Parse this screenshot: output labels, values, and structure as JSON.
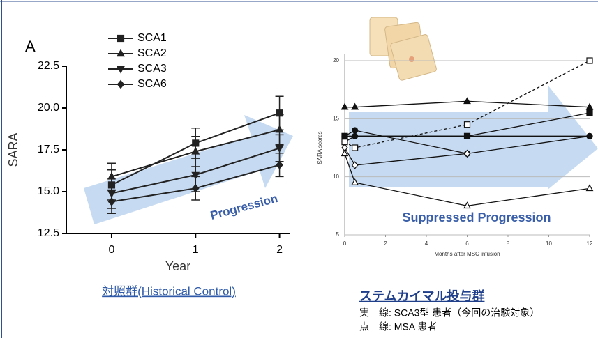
{
  "chart_data": [
    {
      "type": "line",
      "panel_label": "A",
      "xlabel": "Year",
      "ylabel": "SARA",
      "x": [
        0,
        1,
        2
      ],
      "xlim": [
        -0.54,
        2.12
      ],
      "xticks": [
        0,
        1,
        2
      ],
      "ylim": [
        12.5,
        22.5
      ],
      "yticks": [
        12.5,
        {
          "value": 15,
          "label": "15.0"
        },
        17.5,
        {
          "value": 20,
          "label": "20.0"
        },
        22.5
      ],
      "series": [
        {
          "name": "SCA1",
          "color": "#222222",
          "marker": "square",
          "filled": true,
          "values": [
            15.4,
            17.9,
            19.7
          ],
          "errors": [
            0.9,
            0.9,
            1.0
          ]
        },
        {
          "name": "SCA2",
          "color": "#222222",
          "marker": "triangle-up",
          "filled": true,
          "values": [
            15.9,
            17.4,
            18.7
          ],
          "errors": [
            0.8,
            0.9,
            0.9
          ]
        },
        {
          "name": "SCA3",
          "color": "#222222",
          "marker": "triangle-down",
          "filled": true,
          "values": [
            14.9,
            16.0,
            17.6
          ],
          "errors": [
            0.9,
            1.0,
            0.8
          ]
        },
        {
          "name": "SCA6",
          "color": "#222222",
          "marker": "diamond",
          "filled": true,
          "values": [
            14.4,
            15.2,
            16.6
          ],
          "errors": [
            0.7,
            0.7,
            0.7
          ]
        }
      ],
      "annotation": "Progression",
      "caption": "対照群(Historical Control)"
    },
    {
      "type": "line",
      "xlabel": "Months after MSC infusion",
      "ylabel": "SARA scores",
      "xlim": [
        0,
        12
      ],
      "xticks": [
        0,
        2,
        4,
        6,
        8,
        10,
        12
      ],
      "ylim": [
        5,
        20
      ],
      "yticks": [
        5,
        10,
        15,
        20
      ],
      "grid": true,
      "series": [
        {
          "color": "#111111",
          "marker": "triangle-up",
          "filled": true,
          "x": [
            0,
            0.5,
            6,
            12
          ],
          "values": [
            16,
            16,
            16.5,
            16
          ]
        },
        {
          "color": "#111111",
          "marker": "square",
          "filled": true,
          "x": [
            0,
            6,
            12
          ],
          "values": [
            13.5,
            13.5,
            15.5
          ]
        },
        {
          "color": "#111111",
          "marker": "circle",
          "filled": true,
          "x": [
            0,
            0.5,
            6,
            12
          ],
          "values": [
            13.5,
            14,
            12,
            13.5
          ]
        },
        {
          "color": "#111111",
          "marker": "circle",
          "filled": true,
          "x": [
            0,
            0.5,
            12
          ],
          "values": [
            13,
            13.5,
            13.5
          ]
        },
        {
          "color": "#111111",
          "marker": "square",
          "filled": false,
          "dash": true,
          "x": [
            0,
            0.5,
            6,
            12
          ],
          "values": [
            13,
            12.5,
            14.5,
            20
          ]
        },
        {
          "color": "#111111",
          "marker": "diamond",
          "filled": false,
          "x": [
            0,
            0.5,
            6
          ],
          "values": [
            12.5,
            11,
            12
          ]
        },
        {
          "color": "#111111",
          "marker": "triangle-up",
          "filled": false,
          "x": [
            0,
            0.5,
            6,
            12
          ],
          "values": [
            12,
            9.5,
            7.5,
            9
          ]
        }
      ],
      "annotation": "Suppressed Progression",
      "caption": "ステムカイマル投与群",
      "notes": [
        "実　線:  SCA3型 患者（今回の治験対象）",
        "点　線:   MSA 患者"
      ]
    }
  ]
}
